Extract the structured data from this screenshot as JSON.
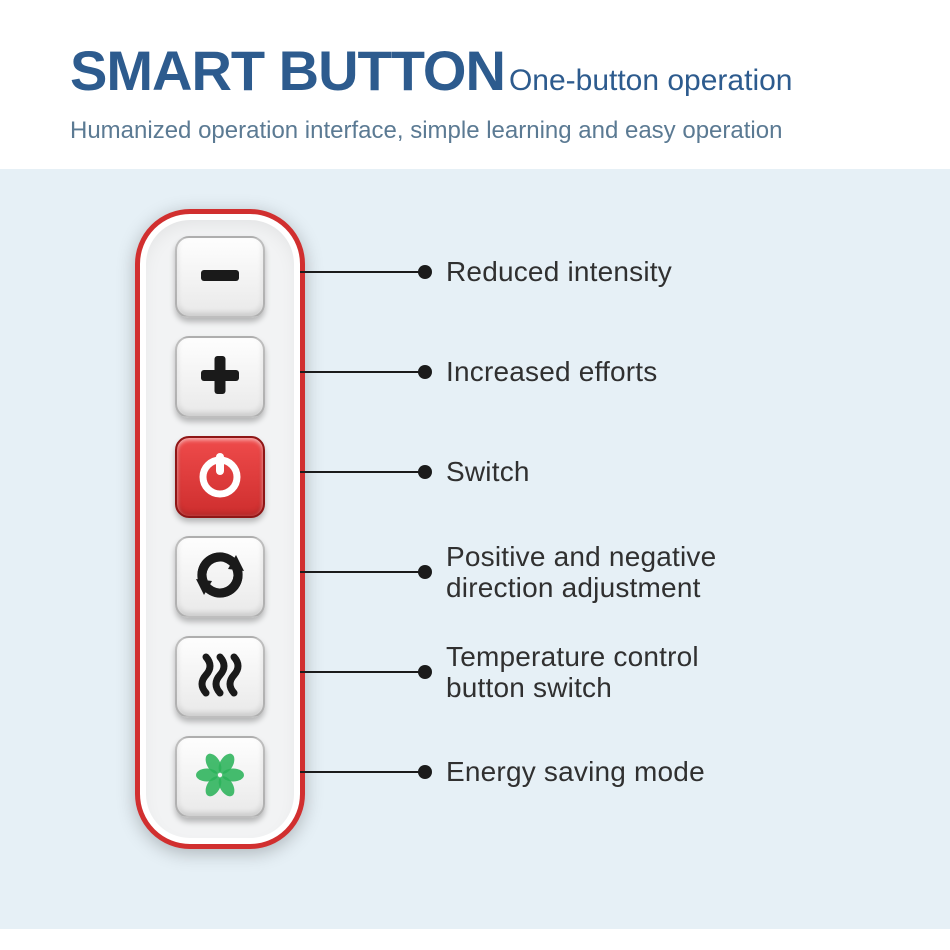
{
  "colors": {
    "page_bg": "#ffffff",
    "panel_bg": "#e6f0f6",
    "title": "#2d5b8e",
    "subtitle": "#2d5b8e",
    "description": "#5b7a93",
    "remote_bg": "#f2f3f4",
    "remote_border": "#d12f2f",
    "leader": "#1b1b1b",
    "dot": "#1b1b1b",
    "label": "#303030",
    "icon_dark": "#1a1a1a",
    "power_stroke": "#ffffff",
    "energy_green": "#2bb35a"
  },
  "header": {
    "title": "SMART BUTTON",
    "subtitle": "One-button operation",
    "description": "Humanized operation interface, simple learning and easy operation"
  },
  "buttons": [
    {
      "id": "minus",
      "label": "Reduced intensity",
      "bg": "white",
      "leader_len": 120
    },
    {
      "id": "plus",
      "label": "Increased efforts",
      "bg": "white",
      "leader_len": 120
    },
    {
      "id": "power",
      "label": "Switch",
      "bg": "red",
      "leader_len": 120
    },
    {
      "id": "cycle",
      "label": "Positive and negative\ndirection adjustment",
      "bg": "white",
      "leader_len": 120
    },
    {
      "id": "heat",
      "label": "Temperature control\nbutton switch",
      "bg": "white",
      "leader_len": 120
    },
    {
      "id": "eco",
      "label": "Energy saving mode",
      "bg": "white",
      "leader_len": 120
    }
  ],
  "layout": {
    "row_tops": [
      22,
      122,
      222,
      322,
      422,
      522
    ]
  }
}
